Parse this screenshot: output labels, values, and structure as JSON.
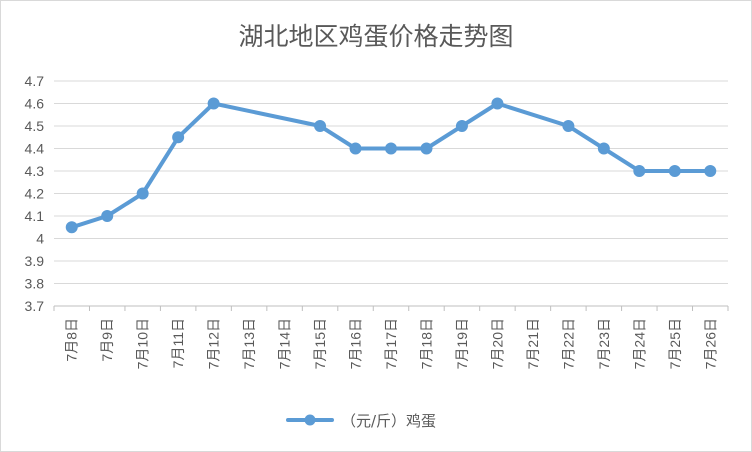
{
  "colors": {
    "line": "#5b9bd5",
    "grid": "#d9d9d9",
    "axis": "#bfbfbf",
    "text": "#595959"
  },
  "chart_data": {
    "type": "line",
    "title": "湖北地区鸡蛋价格走势图",
    "xlabel": "",
    "ylabel": "",
    "ylim": [
      3.7,
      4.7
    ],
    "y_ticks": [
      "3.7",
      "3.8",
      "3.9",
      "4",
      "4.1",
      "4.2",
      "4.3",
      "4.4",
      "4.5",
      "4.6",
      "4.7"
    ],
    "grid": true,
    "legend_position": "bottom",
    "categories": [
      "7月8日",
      "7月9日",
      "7月10日",
      "7月11日",
      "7月12日",
      "7月13日",
      "7月14日",
      "7月15日",
      "7月16日",
      "7月17日",
      "7月18日",
      "7月19日",
      "7月20日",
      "7月21日",
      "7月22日",
      "7月23日",
      "7月24日",
      "7月25日",
      "7月26日"
    ],
    "series": [
      {
        "name": "（元/斤）鸡蛋",
        "values": [
          4.05,
          4.1,
          4.2,
          4.45,
          4.6,
          null,
          null,
          4.5,
          4.4,
          4.4,
          4.4,
          4.5,
          4.6,
          null,
          4.5,
          4.4,
          4.3,
          4.3,
          4.3
        ]
      }
    ]
  }
}
